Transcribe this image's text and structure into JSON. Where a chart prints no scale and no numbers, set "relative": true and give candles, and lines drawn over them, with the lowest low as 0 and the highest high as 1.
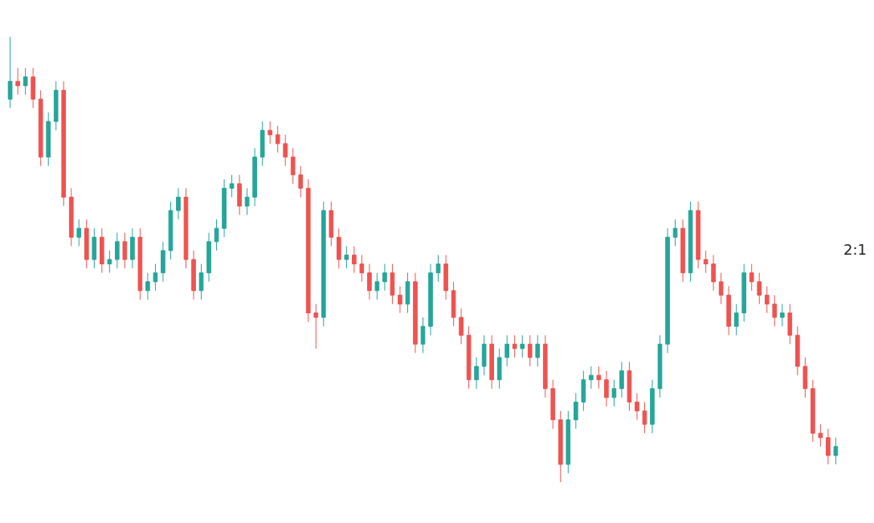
{
  "chart_data": {
    "type": "candlestick",
    "relative": true,
    "categories": [
      null,
      null,
      null,
      null,
      null,
      null,
      null,
      null,
      null,
      null,
      null,
      null,
      null,
      null,
      null,
      null,
      null,
      null,
      null,
      null,
      null,
      null,
      null,
      null,
      null,
      null,
      null,
      null,
      null,
      null,
      null,
      null,
      null,
      null,
      null,
      null,
      null,
      null,
      null,
      null,
      null,
      null,
      null,
      null,
      null,
      null,
      null,
      null,
      null,
      null,
      null,
      null,
      null,
      null,
      null,
      null,
      null,
      null,
      null,
      null,
      null,
      null,
      null,
      null,
      null,
      null,
      null,
      null,
      null,
      null,
      null,
      null,
      null,
      null,
      null,
      null,
      null,
      null,
      null,
      null,
      null,
      null,
      null,
      null,
      null,
      null,
      null,
      null,
      null,
      null,
      null,
      null,
      null,
      null,
      null,
      null,
      null,
      null,
      null,
      null,
      null,
      null,
      null,
      null,
      null,
      null,
      null,
      null,
      null
    ],
    "ohlc": [
      [
        0.86,
        1.0,
        0.84,
        0.9
      ],
      [
        0.9,
        0.93,
        0.87,
        0.89
      ],
      [
        0.89,
        0.93,
        0.87,
        0.91
      ],
      [
        0.91,
        0.93,
        0.84,
        0.86
      ],
      [
        0.86,
        0.88,
        0.71,
        0.73
      ],
      [
        0.73,
        0.83,
        0.71,
        0.81
      ],
      [
        0.81,
        0.9,
        0.79,
        0.88
      ],
      [
        0.88,
        0.9,
        0.62,
        0.64
      ],
      [
        0.64,
        0.66,
        0.53,
        0.55
      ],
      [
        0.55,
        0.59,
        0.53,
        0.57
      ],
      [
        0.57,
        0.59,
        0.48,
        0.5
      ],
      [
        0.5,
        0.57,
        0.48,
        0.55
      ],
      [
        0.55,
        0.57,
        0.47,
        0.49
      ],
      [
        0.49,
        0.52,
        0.47,
        0.5
      ],
      [
        0.5,
        0.56,
        0.48,
        0.54
      ],
      [
        0.54,
        0.56,
        0.48,
        0.5
      ],
      [
        0.5,
        0.57,
        0.48,
        0.55
      ],
      [
        0.55,
        0.57,
        0.41,
        0.43
      ],
      [
        0.43,
        0.47,
        0.41,
        0.45
      ],
      [
        0.45,
        0.49,
        0.43,
        0.47
      ],
      [
        0.47,
        0.54,
        0.45,
        0.52
      ],
      [
        0.52,
        0.63,
        0.5,
        0.61
      ],
      [
        0.61,
        0.66,
        0.59,
        0.64
      ],
      [
        0.64,
        0.66,
        0.48,
        0.5
      ],
      [
        0.5,
        0.52,
        0.41,
        0.43
      ],
      [
        0.43,
        0.49,
        0.41,
        0.47
      ],
      [
        0.47,
        0.56,
        0.45,
        0.54
      ],
      [
        0.54,
        0.59,
        0.52,
        0.57
      ],
      [
        0.57,
        0.68,
        0.55,
        0.66
      ],
      [
        0.66,
        0.69,
        0.64,
        0.67
      ],
      [
        0.67,
        0.69,
        0.6,
        0.62
      ],
      [
        0.62,
        0.66,
        0.6,
        0.64
      ],
      [
        0.64,
        0.75,
        0.62,
        0.73
      ],
      [
        0.73,
        0.81,
        0.71,
        0.79
      ],
      [
        0.79,
        0.81,
        0.76,
        0.78
      ],
      [
        0.78,
        0.8,
        0.74,
        0.76
      ],
      [
        0.76,
        0.78,
        0.71,
        0.73
      ],
      [
        0.73,
        0.75,
        0.67,
        0.69
      ],
      [
        0.69,
        0.71,
        0.64,
        0.66
      ],
      [
        0.66,
        0.68,
        0.36,
        0.38
      ],
      [
        0.38,
        0.4,
        0.3,
        0.37
      ],
      [
        0.37,
        0.63,
        0.35,
        0.61
      ],
      [
        0.61,
        0.63,
        0.53,
        0.55
      ],
      [
        0.55,
        0.57,
        0.48,
        0.5
      ],
      [
        0.5,
        0.53,
        0.48,
        0.51
      ],
      [
        0.51,
        0.53,
        0.47,
        0.49
      ],
      [
        0.49,
        0.51,
        0.45,
        0.47
      ],
      [
        0.47,
        0.49,
        0.41,
        0.43
      ],
      [
        0.43,
        0.47,
        0.41,
        0.45
      ],
      [
        0.45,
        0.49,
        0.43,
        0.47
      ],
      [
        0.47,
        0.49,
        0.4,
        0.42
      ],
      [
        0.42,
        0.44,
        0.38,
        0.4
      ],
      [
        0.4,
        0.47,
        0.38,
        0.45
      ],
      [
        0.45,
        0.47,
        0.29,
        0.31
      ],
      [
        0.31,
        0.37,
        0.29,
        0.35
      ],
      [
        0.35,
        0.49,
        0.33,
        0.47
      ],
      [
        0.47,
        0.51,
        0.45,
        0.49
      ],
      [
        0.49,
        0.51,
        0.41,
        0.43
      ],
      [
        0.43,
        0.45,
        0.35,
        0.37
      ],
      [
        0.37,
        0.39,
        0.31,
        0.33
      ],
      [
        0.33,
        0.35,
        0.21,
        0.23
      ],
      [
        0.23,
        0.28,
        0.21,
        0.26
      ],
      [
        0.26,
        0.33,
        0.24,
        0.31
      ],
      [
        0.31,
        0.33,
        0.21,
        0.23
      ],
      [
        0.23,
        0.3,
        0.21,
        0.28
      ],
      [
        0.28,
        0.33,
        0.26,
        0.31
      ],
      [
        0.31,
        0.33,
        0.28,
        0.3
      ],
      [
        0.3,
        0.33,
        0.28,
        0.31
      ],
      [
        0.31,
        0.33,
        0.26,
        0.28
      ],
      [
        0.28,
        0.33,
        0.26,
        0.31
      ],
      [
        0.31,
        0.33,
        0.19,
        0.21
      ],
      [
        0.21,
        0.23,
        0.12,
        0.14
      ],
      [
        0.14,
        0.16,
        0.0,
        0.04
      ],
      [
        0.04,
        0.16,
        0.02,
        0.14
      ],
      [
        0.14,
        0.2,
        0.12,
        0.18
      ],
      [
        0.18,
        0.25,
        0.16,
        0.23
      ],
      [
        0.23,
        0.26,
        0.21,
        0.24
      ],
      [
        0.24,
        0.26,
        0.21,
        0.23
      ],
      [
        0.23,
        0.25,
        0.17,
        0.19
      ],
      [
        0.19,
        0.23,
        0.17,
        0.21
      ],
      [
        0.21,
        0.27,
        0.19,
        0.25
      ],
      [
        0.25,
        0.27,
        0.16,
        0.18
      ],
      [
        0.18,
        0.2,
        0.14,
        0.16
      ],
      [
        0.16,
        0.18,
        0.11,
        0.13
      ],
      [
        0.13,
        0.23,
        0.11,
        0.21
      ],
      [
        0.21,
        0.33,
        0.19,
        0.31
      ],
      [
        0.31,
        0.57,
        0.29,
        0.55
      ],
      [
        0.55,
        0.59,
        0.53,
        0.57
      ],
      [
        0.57,
        0.59,
        0.45,
        0.47
      ],
      [
        0.47,
        0.63,
        0.45,
        0.61
      ],
      [
        0.61,
        0.63,
        0.48,
        0.5
      ],
      [
        0.5,
        0.52,
        0.47,
        0.49
      ],
      [
        0.49,
        0.51,
        0.43,
        0.45
      ],
      [
        0.45,
        0.47,
        0.4,
        0.42
      ],
      [
        0.42,
        0.44,
        0.33,
        0.35
      ],
      [
        0.35,
        0.4,
        0.33,
        0.38
      ],
      [
        0.38,
        0.49,
        0.36,
        0.47
      ],
      [
        0.47,
        0.49,
        0.43,
        0.45
      ],
      [
        0.45,
        0.47,
        0.4,
        0.42
      ],
      [
        0.42,
        0.44,
        0.38,
        0.4
      ],
      [
        0.4,
        0.42,
        0.35,
        0.37
      ],
      [
        0.37,
        0.4,
        0.35,
        0.38
      ],
      [
        0.38,
        0.4,
        0.31,
        0.33
      ],
      [
        0.33,
        0.35,
        0.24,
        0.26
      ],
      [
        0.26,
        0.28,
        0.19,
        0.21
      ],
      [
        0.21,
        0.23,
        0.09,
        0.11
      ],
      [
        0.11,
        0.13,
        0.08,
        0.1
      ],
      [
        0.1,
        0.12,
        0.04,
        0.06
      ],
      [
        0.06,
        0.1,
        0.04,
        0.08
      ]
    ],
    "annotations": [
      "2:1"
    ]
  }
}
